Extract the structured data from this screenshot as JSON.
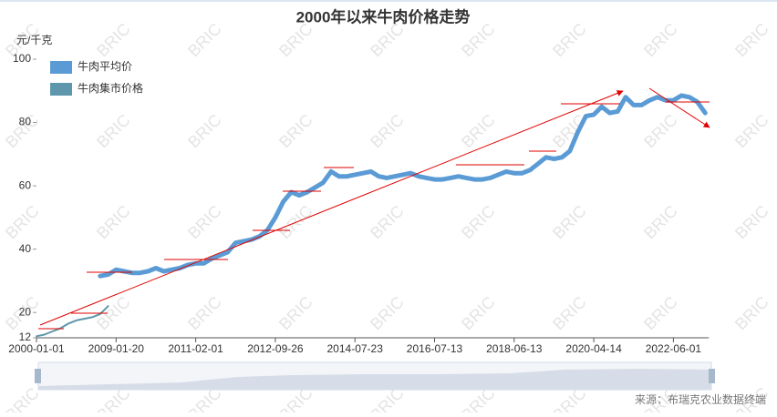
{
  "chart_data": {
    "type": "line",
    "title": "2000年以来牛肉价格走势",
    "y_label": "元/千克",
    "source": "来源：布瑞克农业数据终端",
    "watermark": "BRIC",
    "ylim": [
      12,
      100
    ],
    "yticks": [
      12,
      20,
      40,
      60,
      80,
      100
    ],
    "categories": [
      "2000-01-01",
      null,
      null,
      null,
      null,
      null,
      null,
      null,
      null,
      null,
      "2009-01-20",
      null,
      null,
      null,
      null,
      null,
      null,
      null,
      null,
      null,
      "2011-02-01",
      null,
      null,
      null,
      null,
      null,
      null,
      null,
      null,
      null,
      "2012-09-26",
      null,
      null,
      null,
      null,
      null,
      null,
      null,
      null,
      null,
      "2014-07-23",
      null,
      null,
      null,
      null,
      null,
      null,
      null,
      null,
      null,
      "2016-07-13",
      null,
      null,
      null,
      null,
      null,
      null,
      null,
      null,
      null,
      "2018-06-13",
      null,
      null,
      null,
      null,
      null,
      null,
      null,
      null,
      null,
      "2020-04-14",
      null,
      null,
      null,
      null,
      null,
      null,
      null,
      null,
      null,
      "2022-06-01",
      null,
      null,
      null,
      null
    ],
    "series": [
      {
        "name": "牛肉平均价",
        "color": "#5b9bd5",
        "values": [
          null,
          null,
          null,
          null,
          null,
          null,
          null,
          null,
          31.5,
          32,
          33.5,
          33,
          32.5,
          32.5,
          33,
          34,
          33,
          33.5,
          34,
          35,
          35.5,
          35.5,
          37,
          38,
          39,
          42,
          42.5,
          43,
          44,
          46,
          50,
          55,
          58,
          57,
          58,
          59.5,
          61,
          64.5,
          63,
          63,
          63.5,
          64,
          64.5,
          63,
          62.5,
          63,
          63.5,
          64,
          63,
          62.5,
          62,
          62,
          62.5,
          63,
          62.5,
          62,
          62,
          62.5,
          63.5,
          64.5,
          64,
          64,
          65,
          67,
          69,
          68.5,
          69,
          71,
          77,
          82,
          82.5,
          85,
          83,
          83.5,
          88,
          85.5,
          85.5,
          87,
          88,
          87,
          87,
          88.5,
          88,
          86.5,
          83
        ]
      },
      {
        "name": "牛肉集市价格",
        "color": "#5e97ab",
        "values": [
          12.5,
          13,
          14,
          15,
          16.5,
          17.5,
          18,
          18.5,
          19.5,
          22,
          null,
          null,
          null,
          null,
          null,
          null,
          null,
          null,
          null,
          null,
          null,
          null,
          null,
          null,
          null,
          null,
          null,
          null,
          null,
          null,
          null,
          null,
          null,
          null,
          null,
          null,
          null,
          null,
          null,
          null,
          null,
          null,
          null,
          null,
          null,
          null,
          null,
          null,
          null,
          null,
          null,
          null,
          null,
          null,
          null,
          null,
          null,
          null,
          null,
          null,
          null,
          null,
          null,
          null,
          null,
          null,
          null,
          null,
          null,
          null,
          null,
          null,
          null,
          null,
          null,
          null,
          null,
          null,
          null,
          null,
          null,
          null,
          null,
          null,
          null
        ]
      }
    ]
  }
}
